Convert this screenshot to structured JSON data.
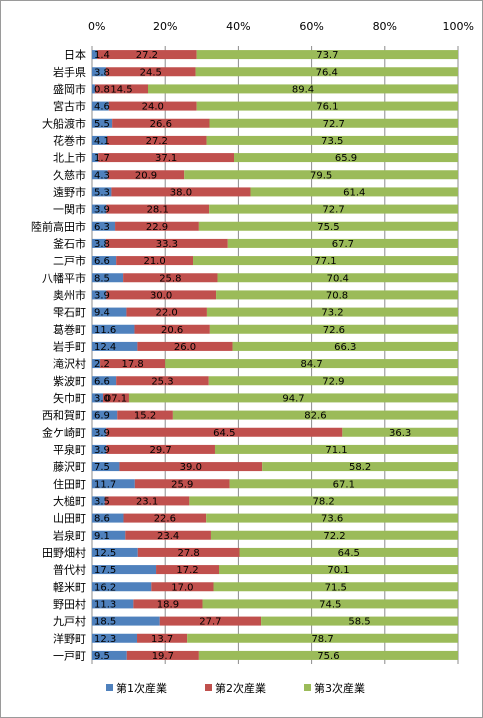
{
  "chart_data": {
    "type": "bar",
    "orientation": "horizontal",
    "stacked": true,
    "percent": true,
    "title": "",
    "xlabel": "",
    "ylabel": "",
    "xlim": [
      0,
      100
    ],
    "x_ticks": [
      "0%",
      "20%",
      "40%",
      "60%",
      "80%",
      "100%"
    ],
    "x_axis_position": "top",
    "grid": true,
    "legend_position": "bottom",
    "categories": [
      "日本",
      "岩手県",
      "盛岡市",
      "宮古市",
      "大船渡市",
      "花巻市",
      "北上市",
      "久慈市",
      "遠野市",
      "一関市",
      "陸前高田市",
      "釜石市",
      "二戸市",
      "八幡平市",
      "奥州市",
      "雫石町",
      "葛巻町",
      "岩手町",
      "滝沢村",
      "紫波町",
      "矢巾町",
      "西和賀町",
      "金ケ崎町",
      "平泉町",
      "藤沢町",
      "住田町",
      "大槌町",
      "山田町",
      "岩泉町",
      "田野畑村",
      "普代村",
      "軽米町",
      "野田村",
      "九戸村",
      "洋野町",
      "一戸町"
    ],
    "series": [
      {
        "name": "第1次産業",
        "color": "#4f81bd",
        "values": [
          1.4,
          3.8,
          0.8,
          4.6,
          5.5,
          4.1,
          1.7,
          4.3,
          5.3,
          3.9,
          6.3,
          3.8,
          6.6,
          8.5,
          3.9,
          9.4,
          11.6,
          12.4,
          2.2,
          6.6,
          3.0,
          6.9,
          3.9,
          3.9,
          7.5,
          11.7,
          3.5,
          8.6,
          9.1,
          12.5,
          17.5,
          16.2,
          11.3,
          18.5,
          12.3,
          9.5
        ],
        "labels": [
          "1.4",
          "3.8",
          "0.8",
          "4.6",
          "5.5",
          "4.1",
          "1.7",
          "4.3",
          "5.3",
          "3.9",
          "6.3",
          "3.8",
          "6.6",
          "8.5",
          "3.9",
          "9.4",
          "11.6",
          "12.4",
          "2.2",
          "6.6",
          "3.0",
          "6.9",
          "3.9",
          "3.9",
          "7.5",
          "11.7",
          "3.5",
          "8.6",
          "9.1",
          "12.5",
          "17.5",
          "16.2",
          "11.3",
          "18.5",
          "12.3",
          "9.5"
        ]
      },
      {
        "name": "第2次産業",
        "color": "#c0504d",
        "values": [
          27.2,
          24.5,
          14.5,
          24.0,
          26.6,
          27.2,
          37.1,
          20.9,
          38.0,
          28.1,
          22.9,
          33.3,
          21.0,
          25.8,
          30.0,
          22.0,
          20.6,
          26.0,
          17.8,
          25.3,
          7.1,
          15.2,
          64.5,
          29.7,
          39.0,
          25.9,
          23.1,
          22.6,
          23.4,
          27.8,
          17.2,
          17.0,
          18.9,
          27.7,
          13.7,
          19.7
        ],
        "labels": [
          "27.2",
          "24.5",
          "14.5",
          "24.0",
          "26.6",
          "27.2",
          "37.1",
          "20.9",
          "38.0",
          "28.1",
          "22.9",
          "33.3",
          "21.0",
          "25.8",
          "30.0",
          "22.0",
          "20.6",
          "26.0",
          "17.8",
          "25.3",
          "07.1",
          "15.2",
          "64.5",
          "29.7",
          "39.0",
          "25.9",
          "23.1",
          "22.6",
          "23.4",
          "27.8",
          "17.2",
          "17.0",
          "18.9",
          "27.7",
          "13.7",
          "19.7"
        ]
      },
      {
        "name": "第3次産業",
        "color": "#9bbb59",
        "values": [
          73.7,
          76.4,
          89.4,
          76.1,
          72.7,
          73.5,
          65.9,
          79.5,
          61.4,
          72.7,
          75.5,
          67.7,
          77.1,
          70.4,
          70.8,
          73.2,
          72.6,
          66.3,
          84.7,
          72.9,
          94.7,
          82.6,
          36.3,
          71.1,
          58.2,
          67.1,
          78.2,
          73.6,
          72.2,
          64.5,
          70.1,
          71.5,
          74.5,
          58.5,
          78.7,
          75.6
        ],
        "labels": [
          "73.7",
          "76.4",
          "89.4",
          "76.1",
          "72.7",
          "73.5",
          "65.9",
          "79.5",
          "61.4",
          "72.7",
          "75.5",
          "67.7",
          "77.1",
          "70.4",
          "70.8",
          "73.2",
          "72.6",
          "66.3",
          "84.7",
          "72.9",
          "94.7",
          "82.6",
          "36.3",
          "71.1",
          "58.2",
          "67.1",
          "78.2",
          "73.6",
          "72.2",
          "64.5",
          "70.1",
          "71.5",
          "74.5",
          "58.5",
          "78.7",
          "75.6"
        ]
      }
    ]
  }
}
